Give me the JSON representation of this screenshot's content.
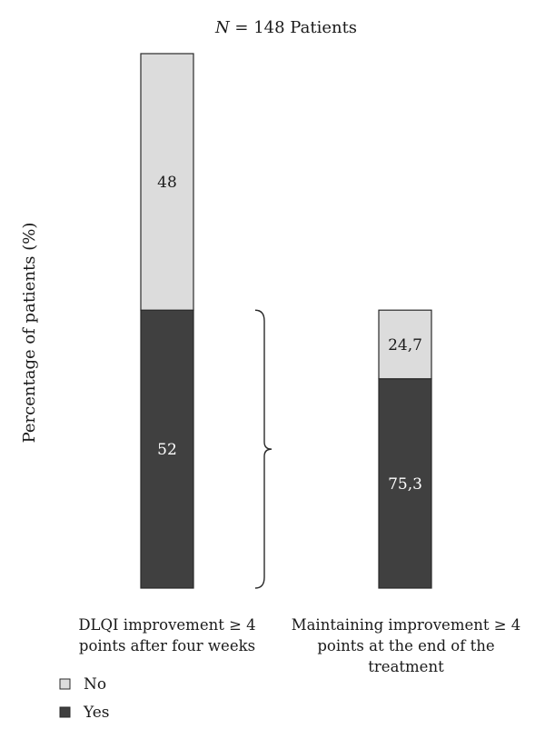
{
  "chart_data": {
    "type": "bar",
    "stacked": true,
    "title_prefix": "N",
    "title_suffix": " = 148 Patients",
    "ylabel": "Percentage of patients (%)",
    "categories": [
      [
        "DLQI improvement ≥ 4",
        "points after four weeks"
      ],
      [
        "Maintaining improvement ≥ 4",
        "points at the end of the",
        "treatment"
      ]
    ],
    "category_bases": [
      100,
      52
    ],
    "series": [
      {
        "name": "Yes",
        "values": [
          52,
          75.3
        ],
        "labels": [
          "52",
          "75,3"
        ],
        "color": "#404040",
        "label_color": "#ffffff"
      },
      {
        "name": "No",
        "values": [
          48,
          24.7
        ],
        "labels": [
          "48",
          "24,7"
        ],
        "color": "#dcdcdc",
        "label_color": "#1a1a1a"
      }
    ],
    "legend_order": [
      "No",
      "Yes"
    ],
    "legend_position": "bottom-left",
    "bracket": {
      "from_category": 0,
      "from_series": "Yes",
      "to_category": 1
    },
    "grid": false
  }
}
